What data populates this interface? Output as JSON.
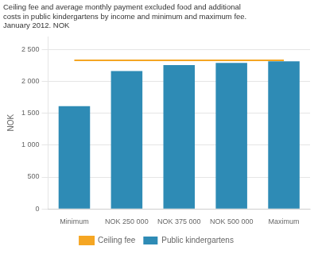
{
  "chart_data": {
    "type": "bar",
    "title": [
      "Ceiling fee and average monthly payment excluded food and additional",
      "costs in public kindergartens by income and minimum and maximum fee.",
      "January 2012. NOK"
    ],
    "ylabel": "NOK",
    "categories": [
      "Minimum",
      "NOK 250 000",
      "NOK 375 000",
      "NOK 500 000",
      "Maximum"
    ],
    "series": [
      {
        "name": "Public kindergartens",
        "type": "bar",
        "color": "#2E8BB5",
        "values": [
          1610,
          2160,
          2255,
          2290,
          2315
        ]
      },
      {
        "name": "Ceiling fee",
        "type": "line",
        "color": "#F5A623",
        "values": [
          2330,
          2330,
          2330,
          2330,
          2330
        ]
      }
    ],
    "ylim": [
      0,
      2700
    ],
    "yticks": [
      0,
      500,
      {
        "value": 1000,
        "label": "1 000"
      },
      {
        "value": 1500,
        "label": "1 500"
      },
      {
        "value": 2000,
        "label": "2 000"
      },
      {
        "value": 2500,
        "label": "2 500"
      }
    ],
    "grid": true,
    "legend": "bottom"
  }
}
